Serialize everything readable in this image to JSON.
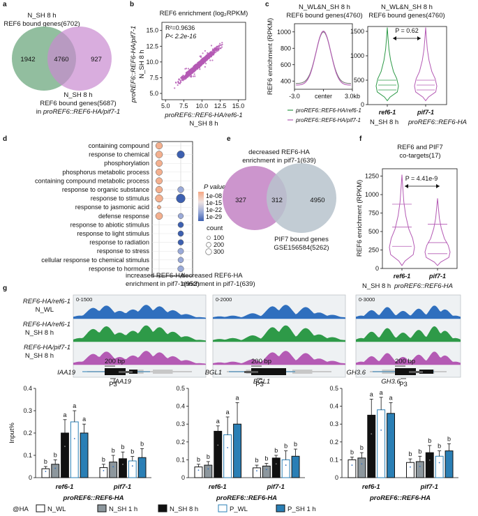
{
  "colors": {
    "green": "#2e9a48",
    "purple": "#b45ab4",
    "blue": "#2f6fbe",
    "grey": "#9aa9b6",
    "teal": "#2a7fb5"
  },
  "panel_labels": [
    "a",
    "b",
    "c",
    "d",
    "e",
    "f",
    "g"
  ],
  "panel_a": {
    "title_line1": "N_SH 8 h",
    "title_line2": "REF6 bound genes(6702)",
    "left_only": "1942",
    "overlap": "4760",
    "right_only": "927",
    "bottom_line1": "N_SH 8 h",
    "bottom_line2": "REF6 bound genes(5687)",
    "bottom_line3": "in proREF6::REF6-HA/pif7-1"
  },
  "chart_data": [
    {
      "type": "scatter",
      "panel": "b",
      "title": "REF6 enrichment (log₂RPKM)",
      "r2": "R²=0.9636",
      "p": "P< 2.2e-16",
      "xlabel_line1": "proREF6::REF6-HA/ref6-1",
      "xlabel_line2": "N_SH 8 h",
      "ylabel_line1": "proREF6::REF6-HA/pif7-1",
      "ylabel_line2": "N_SH 8 h",
      "xlim": [
        4.5,
        16
      ],
      "ylim": [
        4,
        16.3
      ],
      "xticks": [
        "5.0",
        "7.5",
        "10.0",
        "12.5",
        "15.0"
      ],
      "yticks": [
        "5.0",
        "7.5",
        "10.0",
        "12.5",
        "15.0"
      ]
    },
    {
      "type": "line",
      "panel": "c-left",
      "title_line1": "N_WL&N_SH 8 h",
      "title_line2": "REF6 bound genes(4760)",
      "ylabel": "REF6 enrichment (RPKM)",
      "yticks": [
        "400",
        "600",
        "800",
        "1000"
      ],
      "xticks": [
        "-3.0",
        "center",
        "3.0kb"
      ],
      "ylim": [
        300,
        1100
      ],
      "legend": [
        "proREF6::REF6-HA/ref6-1",
        "proREF6::REF6-HA/pif7-1"
      ],
      "series": [
        {
          "name": "proREF6::REF6-HA/ref6-1",
          "peak": 1000,
          "base": 370
        },
        {
          "name": "proREF6::REF6-HA/pif7-1",
          "peak": 1010,
          "base": 350
        }
      ]
    },
    {
      "type": "violin",
      "panel": "c-right",
      "title_line1": "N_WL&N_SH 8 h",
      "title_line2": "REF6 bound genes(4760)",
      "yticks": [
        "0",
        "500",
        "1000",
        "1500"
      ],
      "ylim": [
        0,
        1600
      ],
      "p": "P = 0.62",
      "categories": [
        "ref6-1",
        "pif7-1"
      ],
      "footer": "N_SH 8 h proREF6::REF6-HA"
    },
    {
      "type": "dotplot",
      "panel": "d",
      "terms": [
        "containing compound",
        "response to chemical",
        "phosphorylation",
        "phosphorus metabolic process",
        "containing compound metabolic process",
        "response to organic substance",
        "response to stimulus",
        "response to jasmonic acid",
        "defense response",
        "response to abiotic stimulus",
        "response to light stimulus",
        "response to radiation",
        "response to stress",
        "cellular response to chemical stimulus",
        "response to hormone"
      ],
      "left": [
        1,
        1,
        1,
        1,
        1,
        1,
        1,
        1,
        1,
        0,
        0,
        0,
        0,
        0,
        0
      ],
      "right": [
        0,
        1,
        0,
        0,
        0,
        1,
        1,
        0,
        1,
        1,
        1,
        1,
        1,
        1,
        1
      ],
      "left_size": [
        200,
        210,
        190,
        190,
        190,
        200,
        230,
        70,
        210,
        0,
        0,
        0,
        0,
        0,
        0
      ],
      "right_size": [
        0,
        230,
        0,
        0,
        0,
        170,
        290,
        0,
        140,
        150,
        150,
        150,
        160,
        150,
        170
      ],
      "left_pval": [
        -9,
        -9,
        -9,
        -9,
        -9,
        -9,
        -9,
        -9,
        -9,
        0,
        0,
        0,
        0,
        0,
        0
      ],
      "right_pval": [
        0,
        -29,
        0,
        0,
        0,
        -18,
        -29,
        0,
        -18,
        -27,
        -24,
        -24,
        -20,
        -22,
        -20
      ],
      "xlabel_left_line1": "increased REF6-HA",
      "xlabel_left_line2": "enrichment in pif7-1(952)",
      "xlabel_right_line1": "decreased REF6-HA",
      "xlabel_right_line2": "enrichment in pif7-1(639)",
      "legend_title": "P value",
      "legend_pvals": [
        "1e-08",
        "1e-15",
        "1e-22",
        "1e-29"
      ],
      "legend_count_title": "count",
      "legend_counts": [
        "100",
        "200",
        "300"
      ]
    },
    {
      "type": "violin",
      "panel": "f",
      "title_line1": "REF6 and PIF7",
      "title_line2": "co-targets(17)",
      "ylabel": "REF6 enrichment (RPKM)",
      "yticks": [
        "0",
        "250",
        "500",
        "750",
        "1000",
        "1250"
      ],
      "ylim": [
        0,
        1350
      ],
      "p": "P = 4.41e-9",
      "categories": [
        "ref6-1",
        "pif7-1"
      ],
      "footer_left": "N_SH 8 h",
      "footer_right": "proREF6::REF6-HA"
    },
    {
      "type": "bar",
      "panel": "g",
      "ylabel": "Input%",
      "legend_prefix": "@HA",
      "series_names": [
        "N_WL",
        "N_SH 1 h",
        "N_SH 8 h",
        "P_WL",
        "P_SH 1 h"
      ],
      "charts": [
        {
          "gene": "IAA19",
          "ylim": [
            0,
            0.4
          ],
          "yticks": [
            "0",
            "0.1",
            "0.2",
            "0.3",
            "0.4"
          ],
          "groups": [
            "ref6-1",
            "pif7-1"
          ],
          "footer": "proREF6::REF6-HA",
          "values": [
            [
              0.04,
              0.06,
              0.2,
              0.25,
              0.2
            ],
            [
              0.045,
              0.07,
              0.085,
              0.075,
              0.09
            ]
          ],
          "errors": [
            [
              0.01,
              0.02,
              0.06,
              0.05,
              0.04
            ],
            [
              0.015,
              0.03,
              0.03,
              0.02,
              0.04
            ]
          ],
          "letters": [
            [
              "b",
              "b",
              "a",
              "a",
              "a"
            ],
            [
              "b",
              "b",
              "b",
              "b",
              "b"
            ]
          ]
        },
        {
          "gene": "BGL1",
          "ylim": [
            0,
            0.5
          ],
          "yticks": [
            "0",
            "0.1",
            "0.2",
            "0.3",
            "0.4",
            "0.5"
          ],
          "groups": [
            "ref6-1",
            "pif7-1"
          ],
          "footer": "proREF6::REF6-HA",
          "values": [
            [
              0.06,
              0.07,
              0.26,
              0.24,
              0.3
            ],
            [
              0.055,
              0.065,
              0.11,
              0.1,
              0.12
            ]
          ],
          "errors": [
            [
              0.015,
              0.02,
              0.03,
              0.1,
              0.12
            ],
            [
              0.015,
              0.015,
              0.015,
              0.05,
              0.04
            ]
          ],
          "letters": [
            [
              "b",
              "b",
              "a",
              "a",
              "a"
            ],
            [
              "b",
              "b",
              "b",
              "b",
              "b"
            ]
          ]
        },
        {
          "gene": "GH3.6",
          "ylim": [
            0,
            0.5
          ],
          "yticks": [
            "0",
            "0.1",
            "0.2",
            "0.3",
            "0.4",
            "0.5"
          ],
          "groups": [
            "ref6-1",
            "pif7-1"
          ],
          "footer": "proREF6::REF6-HA",
          "values": [
            [
              0.1,
              0.11,
              0.35,
              0.38,
              0.36
            ],
            [
              0.085,
              0.09,
              0.14,
              0.12,
              0.15
            ]
          ],
          "errors": [
            [
              0.015,
              0.03,
              0.09,
              0.07,
              0.06
            ],
            [
              0.02,
              0.03,
              0.04,
              0.03,
              0.04
            ]
          ],
          "letters": [
            [
              "b",
              "b",
              "a",
              "a",
              "a"
            ],
            [
              "b",
              "b",
              "b",
              "b",
              "b"
            ]
          ]
        }
      ]
    }
  ],
  "panel_e": {
    "top_line1": "decreased REF6-HA",
    "top_line2": "enrichment in pif7-1(639)",
    "left_only": "327",
    "overlap": "312",
    "right_only": "4950",
    "bottom_line1": "PIF7 bound genes",
    "bottom_line2": "GSE156584(5262)"
  },
  "panel_g": {
    "track_labels": [
      [
        "REF6-HA/ref6-1",
        "N_WL"
      ],
      [
        "REF6-HA/ref6-1",
        "N_SH 8 h"
      ],
      [
        "REF6-HA/pif7-1",
        "N_SH 8 h"
      ]
    ],
    "scales": [
      "0-1500",
      "0-2000",
      "0-3000"
    ],
    "genes": [
      "IAA19",
      "BGL1",
      "GH3.6"
    ],
    "scale_bar": "200 bp",
    "primer": "P3"
  }
}
